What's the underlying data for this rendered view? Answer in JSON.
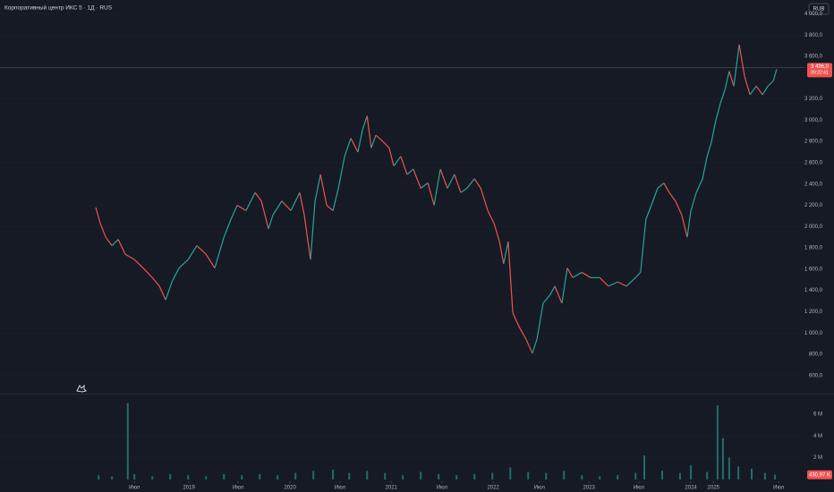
{
  "chart_data": [
    {
      "type": "line",
      "title": "Корпоративный центр ИКС 5 · 1Д · RUS",
      "currency": "RUB",
      "up_color": "#26a69a",
      "down_color": "#ef5350",
      "x": [
        230,
        241,
        254,
        269,
        284,
        301,
        323,
        344,
        366,
        383,
        398,
        413,
        430,
        452,
        473,
        495,
        516,
        538,
        555,
        570,
        591,
        613,
        628,
        645,
        656,
        677,
        699,
        720,
        731,
        746,
        757,
        770,
        785,
        800,
        813,
        828,
        843,
        860,
        871,
        882,
        892,
        903,
        920,
        935,
        946,
        963,
        978,
        993,
        1011,
        1028,
        1043,
        1058,
        1075,
        1092,
        1107,
        1122,
        1140,
        1155,
        1172,
        1187,
        1200,
        1210,
        1221,
        1232,
        1247,
        1264,
        1279,
        1290,
        1305,
        1322,
        1333,
        1350,
        1363,
        1376,
        1398,
        1419,
        1441,
        1462,
        1484,
        1505,
        1527,
        1539,
        1552,
        1565,
        1580,
        1595,
        1608,
        1623,
        1638,
        1651,
        1660,
        1673,
        1688,
        1699,
        1709,
        1720,
        1731,
        1742,
        1752,
        1763,
        1776,
        1789,
        1802,
        1817,
        1832,
        1845,
        1858,
        1866
      ],
      "values": [
        2180,
        2030,
        1900,
        1820,
        1880,
        1740,
        1690,
        1610,
        1520,
        1440,
        1310,
        1480,
        1610,
        1690,
        1820,
        1740,
        1610,
        1900,
        2070,
        2200,
        2150,
        2320,
        2240,
        1980,
        2110,
        2240,
        2150,
        2320,
        2110,
        1690,
        2240,
        2490,
        2200,
        2150,
        2360,
        2660,
        2830,
        2700,
        2910,
        3040,
        2740,
        2860,
        2800,
        2740,
        2570,
        2660,
        2490,
        2540,
        2360,
        2410,
        2200,
        2540,
        2360,
        2490,
        2320,
        2360,
        2450,
        2360,
        2150,
        2030,
        1860,
        1650,
        1860,
        1190,
        1060,
        940,
        810,
        940,
        1280,
        1360,
        1440,
        1280,
        1610,
        1520,
        1570,
        1520,
        1520,
        1440,
        1480,
        1440,
        1520,
        1570,
        2070,
        2200,
        2360,
        2410,
        2320,
        2240,
        2110,
        1900,
        2150,
        2320,
        2450,
        2660,
        2790,
        3000,
        3160,
        3290,
        3460,
        3320,
        3710,
        3410,
        3240,
        3320,
        3240,
        3320,
        3370,
        3480
      ],
      "last_price": {
        "value": 3496,
        "label": "3 496,0"
      },
      "countdown": "09:22:41",
      "xlim": [
        0,
        1935
      ],
      "ylim": [
        430,
        4130
      ],
      "yticks": [
        {
          "value": 600,
          "label": "600,0"
        },
        {
          "value": 800,
          "label": "800,0"
        },
        {
          "value": 1000,
          "label": "1 000,0"
        },
        {
          "value": 1200,
          "label": "1 200,0"
        },
        {
          "value": 1400,
          "label": "1 400,0"
        },
        {
          "value": 1600,
          "label": "1 600,0"
        },
        {
          "value": 1800,
          "label": "1 800,0"
        },
        {
          "value": 2000,
          "label": "2 000,0"
        },
        {
          "value": 2200,
          "label": "2 200,0"
        },
        {
          "value": 2400,
          "label": "2 400,0"
        },
        {
          "value": 2600,
          "label": "2 600,0"
        },
        {
          "value": 2800,
          "label": "2 800,0"
        },
        {
          "value": 3000,
          "label": "3 000,0"
        },
        {
          "value": 3200,
          "label": "3 200,0"
        },
        {
          "value": 3600,
          "label": "3 600,0"
        },
        {
          "value": 3800,
          "label": "3 800,0"
        },
        {
          "value": 4000,
          "label": "4 000,0"
        }
      ]
    },
    {
      "type": "bar",
      "color": "#26a69a",
      "x": [
        237,
        269,
        307,
        323,
        366,
        409,
        452,
        495,
        538,
        581,
        624,
        667,
        710,
        753,
        800,
        839,
        882,
        925,
        968,
        1011,
        1054,
        1097,
        1140,
        1183,
        1226,
        1269,
        1312,
        1355,
        1398,
        1441,
        1484,
        1527,
        1548,
        1591,
        1634,
        1660,
        1699,
        1724,
        1737,
        1752,
        1774,
        1806,
        1838,
        1862
      ],
      "values": [
        0.4,
        0.3,
        7.0,
        0.5,
        0.3,
        0.5,
        0.4,
        0.3,
        0.5,
        0.4,
        0.5,
        0.4,
        0.6,
        0.8,
        0.9,
        0.6,
        0.8,
        0.6,
        0.4,
        0.7,
        0.5,
        0.4,
        0.5,
        0.6,
        1.1,
        0.7,
        0.6,
        0.8,
        0.4,
        0.3,
        0.4,
        0.6,
        2.2,
        0.8,
        0.6,
        1.3,
        0.7,
        6.8,
        3.8,
        2.0,
        1.2,
        1.0,
        0.6,
        0.43097
      ],
      "last_volume": {
        "value": 0.43097,
        "label": "430,97 K"
      },
      "xlim": [
        0,
        1935
      ],
      "ylim": [
        0,
        7.8
      ],
      "yticks": [
        {
          "value": 2,
          "label": "2 M"
        },
        {
          "value": 4,
          "label": "4 M"
        },
        {
          "value": 6,
          "label": "6 M"
        }
      ],
      "xticks": [
        {
          "value": 323,
          "label": "Июл"
        },
        {
          "value": 454,
          "label": "2019"
        },
        {
          "value": 572,
          "label": "Июл"
        },
        {
          "value": 697,
          "label": "2020"
        },
        {
          "value": 817,
          "label": "Июл"
        },
        {
          "value": 940,
          "label": "2021"
        },
        {
          "value": 1062,
          "label": "Июл"
        },
        {
          "value": 1185,
          "label": "2022"
        },
        {
          "value": 1296,
          "label": "Июл"
        },
        {
          "value": 1415,
          "label": "2023"
        },
        {
          "value": 1535,
          "label": "Июл"
        },
        {
          "value": 1660,
          "label": "2024"
        },
        {
          "value": 1714,
          "label": "2025"
        },
        {
          "value": 1871,
          "label": "Июл"
        }
      ]
    }
  ]
}
